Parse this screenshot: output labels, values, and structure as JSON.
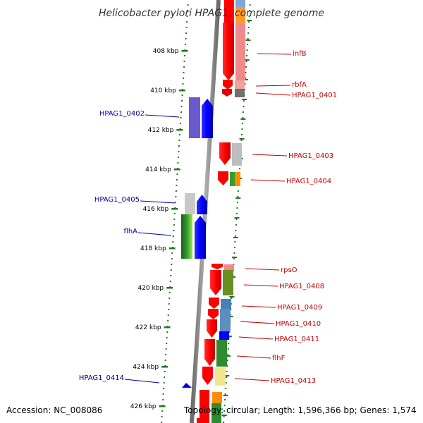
{
  "title": "Helicobacter pylori HPAG1, complete genome",
  "footer": {
    "accession": "Accession: NC_008086",
    "topology": "Topology: circular; Length: 1,596,366 bp; Genes: 1,574"
  },
  "colors": {
    "forward_label": "#00009c",
    "reverse_label": "#c80000",
    "tick_green": "#1f7a1f",
    "backbone": "#909090"
  },
  "kbp_ticks": [
    "408 kbp",
    "410 kbp",
    "412 kbp",
    "414 kbp",
    "416 kbp",
    "418 kbp",
    "420 kbp",
    "422 kbp",
    "424 kbp",
    "426 kbp"
  ],
  "forward_genes": [
    {
      "name": "HPAG1_0402"
    },
    {
      "name": "HPAG1_0405"
    },
    {
      "name": "flhA"
    },
    {
      "name": "HPAG1_0414"
    }
  ],
  "reverse_genes": [
    {
      "name": "infB"
    },
    {
      "name": "rbfA"
    },
    {
      "name": "HPAG1_0401"
    },
    {
      "name": "HPAG1_0403"
    },
    {
      "name": "HPAG1_0404"
    },
    {
      "name": "rpsO"
    },
    {
      "name": "HPAG1_0408"
    },
    {
      "name": "HPAG1_0409"
    },
    {
      "name": "HPAG1_0410"
    },
    {
      "name": "HPAG1_0411"
    },
    {
      "name": "flhF"
    },
    {
      "name": "HPAG1_0413"
    }
  ]
}
